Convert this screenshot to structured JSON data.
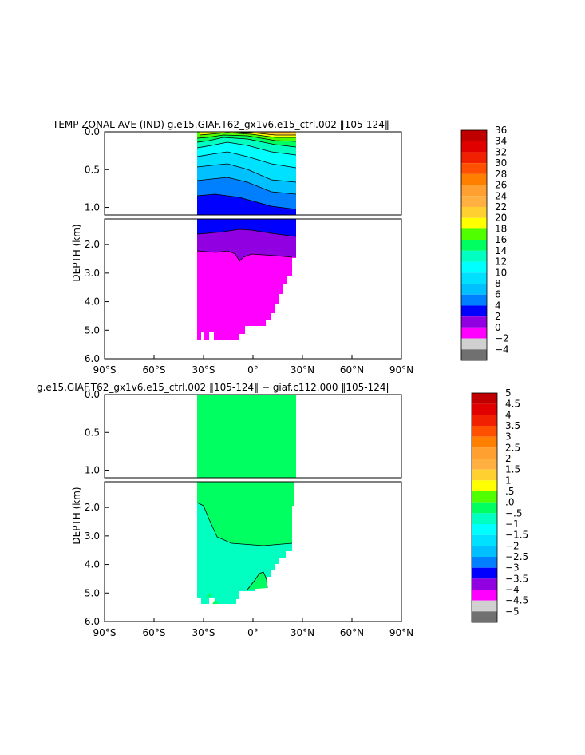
{
  "chart_data": [
    {
      "type": "heatmap",
      "title": "TEMP ZONAL-AVE (IND) g.e15.GIAF.T62_gx1v6.e15_ctrl.002 ‖105-124‖",
      "ylabel": "DEPTH (km)",
      "x_ticks": [
        "90°S",
        "60°S",
        "30°S",
        "0°",
        "30°N",
        "60°N",
        "90°N"
      ],
      "y_ticks_upper": [
        "0.0",
        "0.5",
        "1.0"
      ],
      "y_ticks_lower": [
        "2.0",
        "3.0",
        "4.0",
        "5.0",
        "6.0"
      ],
      "xlim": [
        -90,
        90
      ],
      "ylim_upper_km": [
        0,
        1.1
      ],
      "ylim_lower_km": [
        1.1,
        6.0
      ],
      "colorbar_labels": [
        "36",
        "34",
        "32",
        "30",
        "28",
        "26",
        "24",
        "22",
        "20",
        "18",
        "16",
        "14",
        "12",
        "10",
        "8",
        "6",
        "4",
        "2",
        "0",
        "−2",
        "−4"
      ],
      "colorbar_colors": [
        "#c00000",
        "#e00000",
        "#f02000",
        "#ff5000",
        "#ff8000",
        "#ffa030",
        "#ffb040",
        "#ffd030",
        "#ffff00",
        "#50ff00",
        "#00ff60",
        "#00ffc0",
        "#00ffff",
        "#00e0ff",
        "#00c0ff",
        "#0080ff",
        "#0000ff",
        "#9000e0",
        "#ff00ff",
        "#d0d0d0",
        "#707070"
      ],
      "bands": [
        {
          "depth_km": 0.05,
          "value": 28
        },
        {
          "depth_km": 0.12,
          "value": 24
        },
        {
          "depth_km": 0.2,
          "value": 20
        },
        {
          "depth_km": 0.3,
          "value": 16
        },
        {
          "depth_km": 0.45,
          "value": 14
        },
        {
          "depth_km": 0.6,
          "value": 12
        },
        {
          "depth_km": 0.75,
          "value": 10
        },
        {
          "depth_km": 0.9,
          "value": 8
        },
        {
          "depth_km": 1.1,
          "value": 6
        },
        {
          "depth_km": 1.6,
          "value": 4
        },
        {
          "depth_km": 2.2,
          "value": 2
        },
        {
          "depth_km": 5.4,
          "value": 0
        }
      ]
    },
    {
      "type": "heatmap",
      "title": "g.e15.GIAF.T62_gx1v6.e15_ctrl.002 ‖105-124‖ − giaf.c112.000 ‖105-124‖",
      "ylabel": "DEPTH (km)",
      "x_ticks": [
        "90°S",
        "60°S",
        "30°S",
        "0°",
        "30°N",
        "60°N",
        "90°N"
      ],
      "y_ticks_upper": [
        "0.0",
        "0.5",
        "1.0"
      ],
      "y_ticks_lower": [
        "2.0",
        "3.0",
        "4.0",
        "5.0",
        "6.0"
      ],
      "xlim": [
        -90,
        90
      ],
      "ylim_upper_km": [
        0,
        1.1
      ],
      "ylim_lower_km": [
        1.1,
        6.0
      ],
      "colorbar_labels": [
        "5",
        "4.5",
        "4",
        "3.5",
        "3",
        "2.5",
        "2",
        "1.5",
        "1",
        ".5",
        ".0",
        "−.5",
        "−1",
        "−1.5",
        "−2",
        "−2.5",
        "−3",
        "−3.5",
        "−4",
        "−4.5",
        "−5"
      ],
      "colorbar_colors": [
        "#c00000",
        "#e00000",
        "#f02000",
        "#ff5000",
        "#ff8000",
        "#ffa030",
        "#ffb040",
        "#ffd030",
        "#ffff00",
        "#50ff00",
        "#00ff60",
        "#00ffc0",
        "#00ffff",
        "#00e0ff",
        "#00c0ff",
        "#0080ff",
        "#0000ff",
        "#9000e0",
        "#ff00ff",
        "#d0d0d0",
        "#707070"
      ],
      "regions": [
        {
          "name": "shallow",
          "value": 0.0
        },
        {
          "name": "deep",
          "value": -0.5
        }
      ]
    }
  ]
}
